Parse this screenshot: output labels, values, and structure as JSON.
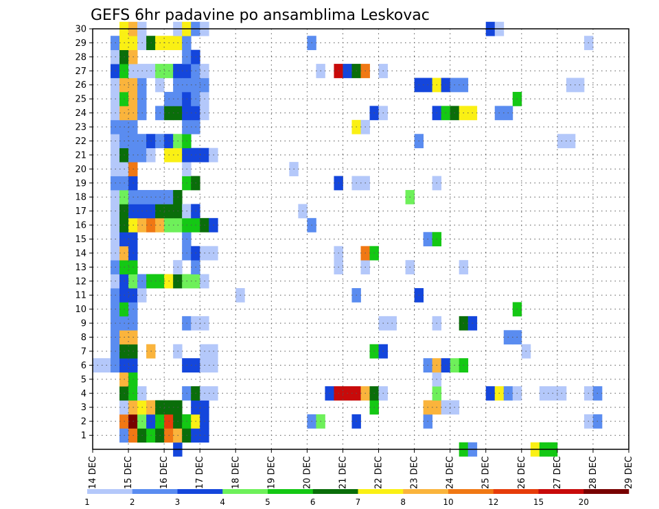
{
  "chart_data": {
    "type": "heatmap",
    "title": "GEFS 6hr padavine po ansamblima Leskovac",
    "x_tick_labels": [
      "14 DEC",
      "15 DEC",
      "16 DEC",
      "17 DEC",
      "18 DEC",
      "19 DEC",
      "20 DEC",
      "21 DEC",
      "22 DEC",
      "23 DEC",
      "24 DEC",
      "25 DEC",
      "26 DEC",
      "27 DEC",
      "28 DEC",
      "29 DEC"
    ],
    "y_tick_labels": [
      "1",
      "2",
      "3",
      "4",
      "5",
      "6",
      "7",
      "8",
      "9",
      "10",
      "11",
      "12",
      "13",
      "14",
      "15",
      "16",
      "17",
      "18",
      "19",
      "20",
      "21",
      "22",
      "23",
      "24",
      "25",
      "26",
      "27",
      "28",
      "29",
      "30"
    ],
    "x_range": [
      "14 DEC 00Z",
      "29 DEC 00Z"
    ],
    "y_range": [
      0,
      30
    ],
    "time_step_hours": 6,
    "grid": "dotted",
    "legend": {
      "position": "bottom",
      "levels": [
        "1",
        "2",
        "3",
        "4",
        "5",
        "6",
        "7",
        "8",
        "10",
        "12",
        "15",
        "20"
      ],
      "colors": [
        "#b4c8fa",
        "#5a8cf0",
        "#1446dc",
        "#6ef05a",
        "#14c814",
        "#0a6e0a",
        "#faf014",
        "#fab43c",
        "#f07814",
        "#e63c0a",
        "#c80a0a",
        "#780000"
      ]
    },
    "cells": [
      [
        0,
        6,
        0
      ],
      [
        1,
        6,
        0
      ],
      [
        2,
        6,
        1
      ],
      [
        2,
        7,
        1
      ],
      [
        2,
        8,
        1
      ],
      [
        2,
        9,
        1
      ],
      [
        2,
        10,
        1
      ],
      [
        2,
        11,
        1
      ],
      [
        2,
        12,
        0
      ],
      [
        2,
        13,
        1
      ],
      [
        2,
        14,
        0
      ],
      [
        2,
        15,
        0
      ],
      [
        2,
        16,
        0
      ],
      [
        2,
        17,
        0
      ],
      [
        2,
        18,
        0
      ],
      [
        2,
        19,
        1
      ],
      [
        2,
        20,
        0
      ],
      [
        2,
        21,
        0
      ],
      [
        2,
        22,
        0
      ],
      [
        2,
        23,
        1
      ],
      [
        2,
        24,
        0
      ],
      [
        2,
        25,
        0
      ],
      [
        2,
        26,
        0
      ],
      [
        2,
        27,
        2
      ],
      [
        2,
        28,
        0
      ],
      [
        2,
        29,
        1
      ],
      [
        3,
        1,
        1
      ],
      [
        3,
        2,
        8
      ],
      [
        3,
        3,
        0
      ],
      [
        3,
        4,
        5
      ],
      [
        3,
        5,
        7
      ],
      [
        3,
        6,
        2
      ],
      [
        3,
        7,
        5
      ],
      [
        3,
        8,
        7
      ],
      [
        3,
        9,
        1
      ],
      [
        3,
        10,
        4
      ],
      [
        3,
        11,
        2
      ],
      [
        3,
        12,
        2
      ],
      [
        3,
        13,
        4
      ],
      [
        3,
        14,
        7
      ],
      [
        3,
        15,
        2
      ],
      [
        3,
        16,
        5
      ],
      [
        3,
        17,
        5
      ],
      [
        3,
        18,
        3
      ],
      [
        3,
        19,
        1
      ],
      [
        3,
        20,
        0
      ],
      [
        3,
        21,
        5
      ],
      [
        3,
        22,
        1
      ],
      [
        3,
        23,
        1
      ],
      [
        3,
        24,
        7
      ],
      [
        3,
        25,
        4
      ],
      [
        3,
        26,
        7
      ],
      [
        3,
        27,
        4
      ],
      [
        3,
        28,
        5
      ],
      [
        3,
        29,
        6
      ],
      [
        3,
        30,
        6
      ],
      [
        4,
        1,
        8
      ],
      [
        4,
        2,
        11
      ],
      [
        4,
        3,
        7
      ],
      [
        4,
        4,
        4
      ],
      [
        4,
        5,
        4
      ],
      [
        4,
        6,
        2
      ],
      [
        4,
        7,
        5
      ],
      [
        4,
        8,
        7
      ],
      [
        4,
        9,
        1
      ],
      [
        4,
        10,
        1
      ],
      [
        4,
        11,
        2
      ],
      [
        4,
        12,
        3
      ],
      [
        4,
        13,
        4
      ],
      [
        4,
        14,
        2
      ],
      [
        4,
        15,
        2
      ],
      [
        4,
        16,
        6
      ],
      [
        4,
        17,
        2
      ],
      [
        4,
        18,
        1
      ],
      [
        4,
        19,
        2
      ],
      [
        4,
        20,
        8
      ],
      [
        4,
        21,
        1
      ],
      [
        4,
        22,
        1
      ],
      [
        4,
        23,
        1
      ],
      [
        4,
        24,
        7
      ],
      [
        4,
        25,
        7
      ],
      [
        4,
        26,
        7
      ],
      [
        4,
        27,
        0
      ],
      [
        4,
        28,
        7
      ],
      [
        4,
        29,
        6
      ],
      [
        4,
        30,
        7
      ],
      [
        5,
        1,
        5
      ],
      [
        5,
        2,
        3
      ],
      [
        5,
        3,
        6
      ],
      [
        5,
        4,
        0
      ],
      [
        5,
        11,
        0
      ],
      [
        5,
        12,
        1
      ],
      [
        5,
        16,
        7
      ],
      [
        5,
        17,
        2
      ],
      [
        5,
        18,
        1
      ],
      [
        5,
        21,
        1
      ],
      [
        5,
        22,
        1
      ],
      [
        5,
        24,
        1
      ],
      [
        5,
        25,
        1
      ],
      [
        5,
        26,
        1
      ],
      [
        5,
        27,
        0
      ],
      [
        5,
        29,
        0
      ],
      [
        5,
        30,
        0
      ],
      [
        6,
        1,
        4
      ],
      [
        6,
        2,
        2
      ],
      [
        6,
        3,
        7
      ],
      [
        6,
        7,
        7
      ],
      [
        6,
        12,
        4
      ],
      [
        6,
        16,
        8
      ],
      [
        6,
        17,
        2
      ],
      [
        6,
        18,
        1
      ],
      [
        6,
        21,
        0
      ],
      [
        6,
        22,
        2
      ],
      [
        6,
        27,
        0
      ],
      [
        6,
        29,
        5
      ],
      [
        7,
        1,
        5
      ],
      [
        7,
        2,
        4
      ],
      [
        7,
        3,
        5
      ],
      [
        7,
        12,
        4
      ],
      [
        7,
        16,
        7
      ],
      [
        7,
        17,
        5
      ],
      [
        7,
        18,
        1
      ],
      [
        7,
        22,
        1
      ],
      [
        7,
        24,
        1
      ],
      [
        7,
        26,
        0
      ],
      [
        7,
        27,
        3
      ],
      [
        7,
        29,
        6
      ],
      [
        8,
        1,
        8
      ],
      [
        8,
        2,
        9
      ],
      [
        8,
        3,
        5
      ],
      [
        8,
        12,
        6
      ],
      [
        8,
        16,
        3
      ],
      [
        8,
        17,
        5
      ],
      [
        8,
        18,
        1
      ],
      [
        8,
        21,
        6
      ],
      [
        8,
        22,
        2
      ],
      [
        8,
        24,
        5
      ],
      [
        8,
        25,
        1
      ],
      [
        8,
        27,
        3
      ],
      [
        8,
        29,
        6
      ],
      [
        9,
        0,
        2
      ],
      [
        9,
        1,
        7
      ],
      [
        9,
        2,
        5
      ],
      [
        9,
        3,
        5
      ],
      [
        9,
        7,
        0
      ],
      [
        9,
        12,
        5
      ],
      [
        9,
        13,
        0
      ],
      [
        9,
        16,
        3
      ],
      [
        9,
        17,
        5
      ],
      [
        9,
        18,
        5
      ],
      [
        9,
        21,
        6
      ],
      [
        9,
        22,
        3
      ],
      [
        9,
        24,
        5
      ],
      [
        9,
        25,
        1
      ],
      [
        9,
        26,
        1
      ],
      [
        9,
        27,
        2
      ],
      [
        9,
        29,
        6
      ],
      [
        9,
        30,
        0
      ],
      [
        10,
        1,
        5
      ],
      [
        10,
        2,
        4
      ],
      [
        10,
        4,
        1
      ],
      [
        10,
        6,
        2
      ],
      [
        10,
        9,
        1
      ],
      [
        10,
        12,
        3
      ],
      [
        10,
        14,
        1
      ],
      [
        10,
        15,
        1
      ],
      [
        10,
        16,
        4
      ],
      [
        10,
        17,
        0
      ],
      [
        10,
        19,
        4
      ],
      [
        10,
        20,
        0
      ],
      [
        10,
        21,
        2
      ],
      [
        10,
        22,
        4
      ],
      [
        10,
        23,
        1
      ],
      [
        10,
        24,
        2
      ],
      [
        10,
        25,
        2
      ],
      [
        10,
        26,
        1
      ],
      [
        10,
        27,
        2
      ],
      [
        10,
        28,
        1
      ],
      [
        10,
        29,
        1
      ],
      [
        10,
        30,
        6
      ],
      [
        11,
        1,
        2
      ],
      [
        11,
        2,
        6
      ],
      [
        11,
        3,
        2
      ],
      [
        11,
        4,
        5
      ],
      [
        11,
        6,
        2
      ],
      [
        11,
        9,
        0
      ],
      [
        11,
        12,
        3
      ],
      [
        11,
        13,
        1
      ],
      [
        11,
        14,
        2
      ],
      [
        11,
        16,
        4
      ],
      [
        11,
        17,
        2
      ],
      [
        11,
        19,
        5
      ],
      [
        11,
        21,
        2
      ],
      [
        11,
        23,
        1
      ],
      [
        11,
        24,
        2
      ],
      [
        11,
        25,
        1
      ],
      [
        11,
        26,
        1
      ],
      [
        11,
        27,
        1
      ],
      [
        11,
        28,
        2
      ],
      [
        11,
        30,
        1
      ],
      [
        12,
        1,
        2
      ],
      [
        12,
        2,
        2
      ],
      [
        12,
        3,
        2
      ],
      [
        12,
        4,
        0
      ],
      [
        12,
        6,
        0
      ],
      [
        12,
        7,
        0
      ],
      [
        12,
        9,
        0
      ],
      [
        12,
        12,
        0
      ],
      [
        12,
        14,
        0
      ],
      [
        12,
        16,
        5
      ],
      [
        12,
        21,
        2
      ],
      [
        12,
        24,
        0
      ],
      [
        12,
        25,
        0
      ],
      [
        12,
        26,
        1
      ],
      [
        12,
        27,
        0
      ],
      [
        12,
        30,
        0
      ],
      [
        13,
        4,
        0
      ],
      [
        13,
        6,
        0
      ],
      [
        13,
        7,
        0
      ],
      [
        13,
        14,
        0
      ],
      [
        13,
        16,
        2
      ],
      [
        13,
        21,
        0
      ],
      [
        16,
        11,
        0
      ],
      [
        22,
        20,
        0
      ],
      [
        23,
        17,
        0
      ],
      [
        24,
        2,
        1
      ],
      [
        24,
        16,
        1
      ],
      [
        24,
        29,
        1
      ],
      [
        25,
        2,
        3
      ],
      [
        25,
        27,
        0
      ],
      [
        26,
        4,
        2
      ],
      [
        27,
        4,
        10
      ],
      [
        27,
        13,
        0
      ],
      [
        27,
        14,
        0
      ],
      [
        27,
        19,
        2
      ],
      [
        27,
        27,
        10
      ],
      [
        28,
        4,
        10
      ],
      [
        28,
        27,
        2
      ],
      [
        29,
        2,
        2
      ],
      [
        29,
        4,
        10
      ],
      [
        29,
        11,
        1
      ],
      [
        29,
        19,
        0
      ],
      [
        29,
        23,
        6
      ],
      [
        29,
        27,
        5
      ],
      [
        30,
        4,
        7
      ],
      [
        30,
        13,
        0
      ],
      [
        30,
        14,
        8
      ],
      [
        30,
        19,
        0
      ],
      [
        30,
        23,
        0
      ],
      [
        30,
        27,
        8
      ],
      [
        31,
        3,
        4
      ],
      [
        31,
        4,
        5
      ],
      [
        31,
        7,
        4
      ],
      [
        31,
        14,
        4
      ],
      [
        31,
        24,
        2
      ],
      [
        32,
        4,
        0
      ],
      [
        32,
        7,
        2
      ],
      [
        32,
        9,
        0
      ],
      [
        32,
        24,
        0
      ],
      [
        32,
        27,
        0
      ],
      [
        33,
        9,
        0
      ],
      [
        35,
        13,
        0
      ],
      [
        35,
        18,
        3
      ],
      [
        36,
        11,
        2
      ],
      [
        36,
        22,
        1
      ],
      [
        36,
        26,
        2
      ],
      [
        37,
        2,
        1
      ],
      [
        37,
        3,
        7
      ],
      [
        37,
        6,
        1
      ],
      [
        37,
        15,
        1
      ],
      [
        37,
        26,
        2
      ],
      [
        38,
        3,
        7
      ],
      [
        38,
        4,
        3
      ],
      [
        38,
        5,
        0
      ],
      [
        38,
        6,
        7
      ],
      [
        38,
        9,
        0
      ],
      [
        38,
        15,
        4
      ],
      [
        38,
        19,
        0
      ],
      [
        38,
        24,
        2
      ],
      [
        38,
        26,
        6
      ],
      [
        39,
        3,
        0
      ],
      [
        39,
        6,
        2
      ],
      [
        39,
        24,
        4
      ],
      [
        39,
        26,
        2
      ],
      [
        40,
        3,
        0
      ],
      [
        40,
        6,
        3
      ],
      [
        40,
        24,
        5
      ],
      [
        40,
        26,
        1
      ],
      [
        41,
        0,
        4
      ],
      [
        41,
        6,
        4
      ],
      [
        41,
        9,
        5
      ],
      [
        41,
        13,
        0
      ],
      [
        41,
        24,
        6
      ],
      [
        41,
        26,
        1
      ],
      [
        42,
        0,
        1
      ],
      [
        42,
        9,
        2
      ],
      [
        42,
        24,
        6
      ],
      [
        44,
        4,
        2
      ],
      [
        44,
        30,
        2
      ],
      [
        45,
        4,
        6
      ],
      [
        45,
        24,
        1
      ],
      [
        45,
        30,
        0
      ],
      [
        46,
        4,
        1
      ],
      [
        46,
        8,
        1
      ],
      [
        46,
        24,
        1
      ],
      [
        47,
        4,
        0
      ],
      [
        47,
        8,
        1
      ],
      [
        47,
        10,
        4
      ],
      [
        47,
        25,
        4
      ],
      [
        48,
        7,
        0
      ],
      [
        49,
        0,
        6
      ],
      [
        50,
        0,
        4
      ],
      [
        50,
        4,
        0
      ],
      [
        51,
        0,
        4
      ],
      [
        51,
        4,
        0
      ],
      [
        52,
        4,
        0
      ],
      [
        52,
        22,
        0
      ],
      [
        53,
        22,
        0
      ],
      [
        53,
        26,
        0
      ],
      [
        54,
        26,
        0
      ],
      [
        55,
        2,
        0
      ],
      [
        55,
        4,
        0
      ],
      [
        55,
        29,
        0
      ],
      [
        56,
        2,
        1
      ],
      [
        56,
        4,
        1
      ]
    ]
  }
}
